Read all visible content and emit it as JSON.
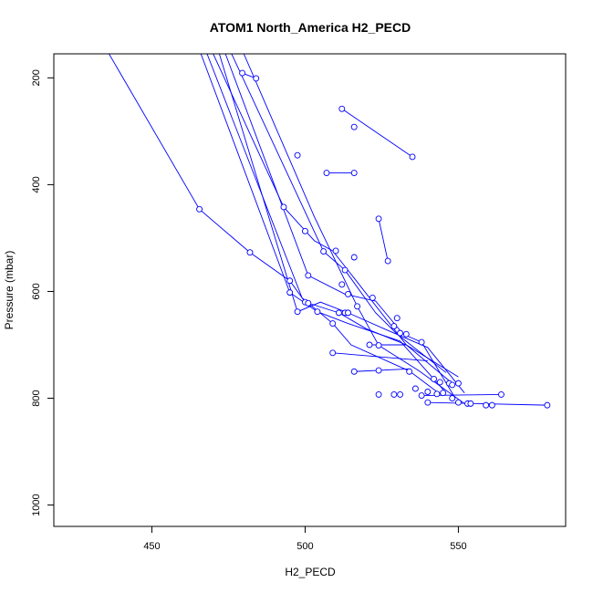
{
  "chart_data": {
    "type": "scatter",
    "title": "ATOM1 North_America H2_PECD",
    "xlabel": "H2_PECD",
    "ylabel": "Pressure (mbar)",
    "xlim": [
      418,
      585
    ],
    "ylim": [
      1040,
      155
    ],
    "y_inverted": true,
    "x_ticks": [
      450,
      500,
      550
    ],
    "y_ticks": [
      200,
      400,
      600,
      800,
      1000
    ],
    "grid": false,
    "legend": "none",
    "colors": {
      "series": "#0000ff",
      "axis": "#000000"
    },
    "series": [
      {
        "lines": [
          [
            [
              436,
              155
            ],
            [
              465.5,
              446
            ],
            [
              482,
              527
            ],
            [
              495,
              580
            ],
            [
              500,
              620
            ],
            [
              511,
              640
            ],
            [
              520,
              670
            ],
            [
              533,
              700
            ],
            [
              548,
              772
            ]
          ],
          [
            [
              466,
              155
            ],
            [
              495,
              602
            ],
            [
              504,
              638
            ],
            [
              514,
              660
            ],
            [
              531,
              693
            ],
            [
              546,
              790
            ]
          ],
          [
            [
              472,
              155
            ],
            [
              497.5,
              638
            ],
            [
              505,
              620
            ],
            [
              514,
              640
            ],
            [
              527,
              673
            ],
            [
              540,
              705
            ],
            [
              552,
              790
            ]
          ],
          [
            [
              468,
              155
            ],
            [
              499,
              612
            ],
            [
              509,
              660
            ],
            [
              515,
              700
            ],
            [
              534,
              749
            ],
            [
              544,
              792
            ]
          ],
          [
            [
              474,
              155
            ],
            [
              501,
              570
            ],
            [
              513,
              605
            ],
            [
              523,
              618
            ],
            [
              532,
              680
            ],
            [
              538,
              695
            ],
            [
              549,
              800
            ]
          ],
          [
            [
              476,
              155
            ],
            [
              506,
              525
            ],
            [
              513,
              560
            ],
            [
              523,
              640
            ],
            [
              530,
              680
            ],
            [
              546,
              752
            ]
          ],
          [
            [
              480,
              155
            ],
            [
              503,
              460
            ],
            [
              517,
              628
            ],
            [
              524,
              701
            ],
            [
              537,
              748
            ],
            [
              552,
              810
            ]
          ],
          [
            [
              470,
              155
            ],
            [
              493,
              442
            ],
            [
              503,
              505
            ],
            [
              509,
              524
            ],
            [
              516,
              575
            ],
            [
              533,
              700
            ],
            [
              550,
              760
            ]
          ]
        ],
        "points": [
          [
            479.5,
            191
          ],
          [
            484,
            201
          ],
          [
            512,
            258
          ],
          [
            516,
            292
          ],
          [
            535,
            348
          ],
          [
            507,
            378
          ],
          [
            516,
            378
          ],
          [
            497.5,
            345
          ],
          [
            465.5,
            446
          ],
          [
            493,
            442
          ],
          [
            524,
            464
          ],
          [
            500,
            487
          ],
          [
            527,
            543
          ],
          [
            482,
            527
          ],
          [
            516,
            536
          ],
          [
            495,
            580
          ],
          [
            510,
            524
          ],
          [
            501,
            570
          ],
          [
            506,
            525
          ],
          [
            513,
            560
          ],
          [
            512,
            587
          ],
          [
            495,
            602
          ],
          [
            514,
            605
          ],
          [
            522,
            612
          ],
          [
            500,
            620
          ],
          [
            501,
            622
          ],
          [
            497.5,
            638
          ],
          [
            504,
            638
          ],
          [
            511,
            640
          ],
          [
            513,
            640
          ],
          [
            514,
            640
          ],
          [
            517,
            628
          ],
          [
            530,
            650
          ],
          [
            529,
            665
          ],
          [
            509,
            660
          ],
          [
            531,
            678
          ],
          [
            533,
            680
          ],
          [
            521,
            700
          ],
          [
            524,
            701
          ],
          [
            538,
            695
          ],
          [
            509,
            715
          ],
          [
            516,
            750
          ],
          [
            524,
            748
          ],
          [
            534,
            750
          ],
          [
            542,
            764
          ],
          [
            544,
            770
          ],
          [
            547,
            772
          ],
          [
            550,
            772
          ],
          [
            548,
            775
          ],
          [
            536,
            782
          ],
          [
            540,
            788
          ],
          [
            543,
            792
          ],
          [
            545,
            790
          ],
          [
            538,
            795
          ],
          [
            529,
            793
          ],
          [
            531,
            793
          ],
          [
            524,
            793
          ],
          [
            564,
            793
          ],
          [
            540,
            808
          ],
          [
            550,
            808
          ],
          [
            548,
            800
          ],
          [
            553,
            810
          ],
          [
            554,
            810
          ],
          [
            559,
            813
          ],
          [
            561,
            813
          ],
          [
            579,
            813
          ]
        ],
        "extra_segments": [
          [
            [
              479.5,
              191
            ],
            [
              484,
              201
            ]
          ],
          [
            [
              512,
              258
            ],
            [
              535,
              348
            ]
          ],
          [
            [
              507,
              378
            ],
            [
              516,
              378
            ]
          ],
          [
            [
              524,
              464
            ],
            [
              527,
              543
            ]
          ],
          [
            [
              538,
              795
            ],
            [
              564,
              793
            ]
          ],
          [
            [
              540,
              808
            ],
            [
              579,
              813
            ]
          ],
          [
            [
              509,
              715
            ],
            [
              540,
              730
            ]
          ],
          [
            [
              516,
              750
            ],
            [
              534,
              745
            ]
          ],
          [
            [
              521,
              700
            ],
            [
              533,
              700
            ]
          ]
        ]
      }
    ]
  }
}
